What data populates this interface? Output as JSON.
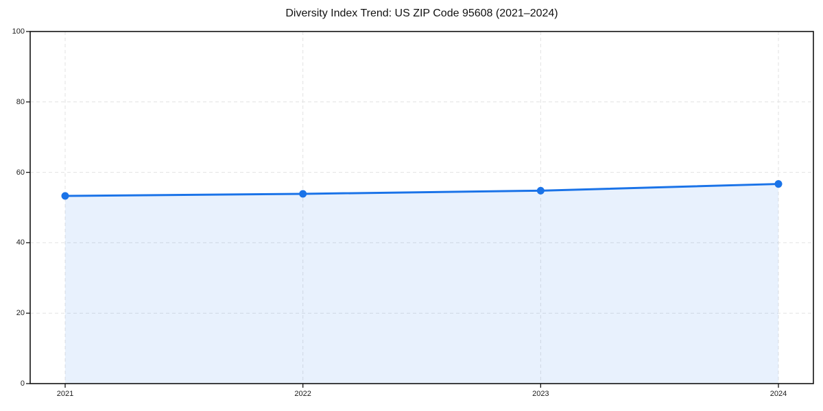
{
  "chart_data": {
    "type": "area",
    "title": "Diversity Index Trend: US ZIP Code 95608 (2021–2024)",
    "categories": [
      "2021",
      "2022",
      "2023",
      "2024"
    ],
    "values": [
      53.3,
      53.9,
      54.8,
      56.7
    ],
    "xlabel": "",
    "ylabel": "",
    "ylim": [
      0,
      100
    ],
    "yticks": [
      0,
      20,
      40,
      60,
      80,
      100
    ],
    "grid": "dashed",
    "legend": "none",
    "colors": {
      "line": "#1a73e8",
      "marker": "#1a73e8",
      "fill": "rgba(26,115,232,0.10)",
      "gridline": "#e2e2e2",
      "spine": "#111111",
      "tick": "#111111",
      "tick_label": "#1a1a1a",
      "title": "#111111",
      "background": "#ffffff"
    }
  }
}
